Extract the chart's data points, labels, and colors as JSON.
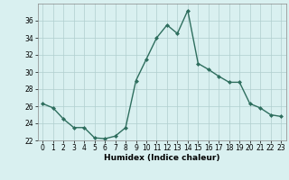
{
  "x": [
    0,
    1,
    2,
    3,
    4,
    5,
    6,
    7,
    8,
    9,
    10,
    11,
    12,
    13,
    14,
    15,
    16,
    17,
    18,
    19,
    20,
    21,
    22,
    23
  ],
  "y": [
    26.3,
    25.8,
    24.5,
    23.5,
    23.5,
    22.3,
    22.2,
    22.5,
    23.5,
    29.0,
    31.5,
    34.0,
    35.5,
    34.5,
    37.2,
    31.0,
    30.3,
    29.5,
    28.8,
    28.8,
    26.3,
    25.8,
    25.0,
    24.8
  ],
  "line_color": "#2e6e5e",
  "marker": "D",
  "marker_size": 2.0,
  "bg_color": "#d9f0f0",
  "grid_color": "#b0cece",
  "xlabel": "Humidex (Indice chaleur)",
  "ylabel": "",
  "ylim": [
    22,
    38
  ],
  "xlim": [
    -0.5,
    23.5
  ],
  "yticks": [
    22,
    24,
    26,
    28,
    30,
    32,
    34,
    36
  ],
  "xticks": [
    0,
    1,
    2,
    3,
    4,
    5,
    6,
    7,
    8,
    9,
    10,
    11,
    12,
    13,
    14,
    15,
    16,
    17,
    18,
    19,
    20,
    21,
    22,
    23
  ],
  "xlabel_fontsize": 6.5,
  "tick_fontsize": 5.5,
  "line_width": 1.0
}
